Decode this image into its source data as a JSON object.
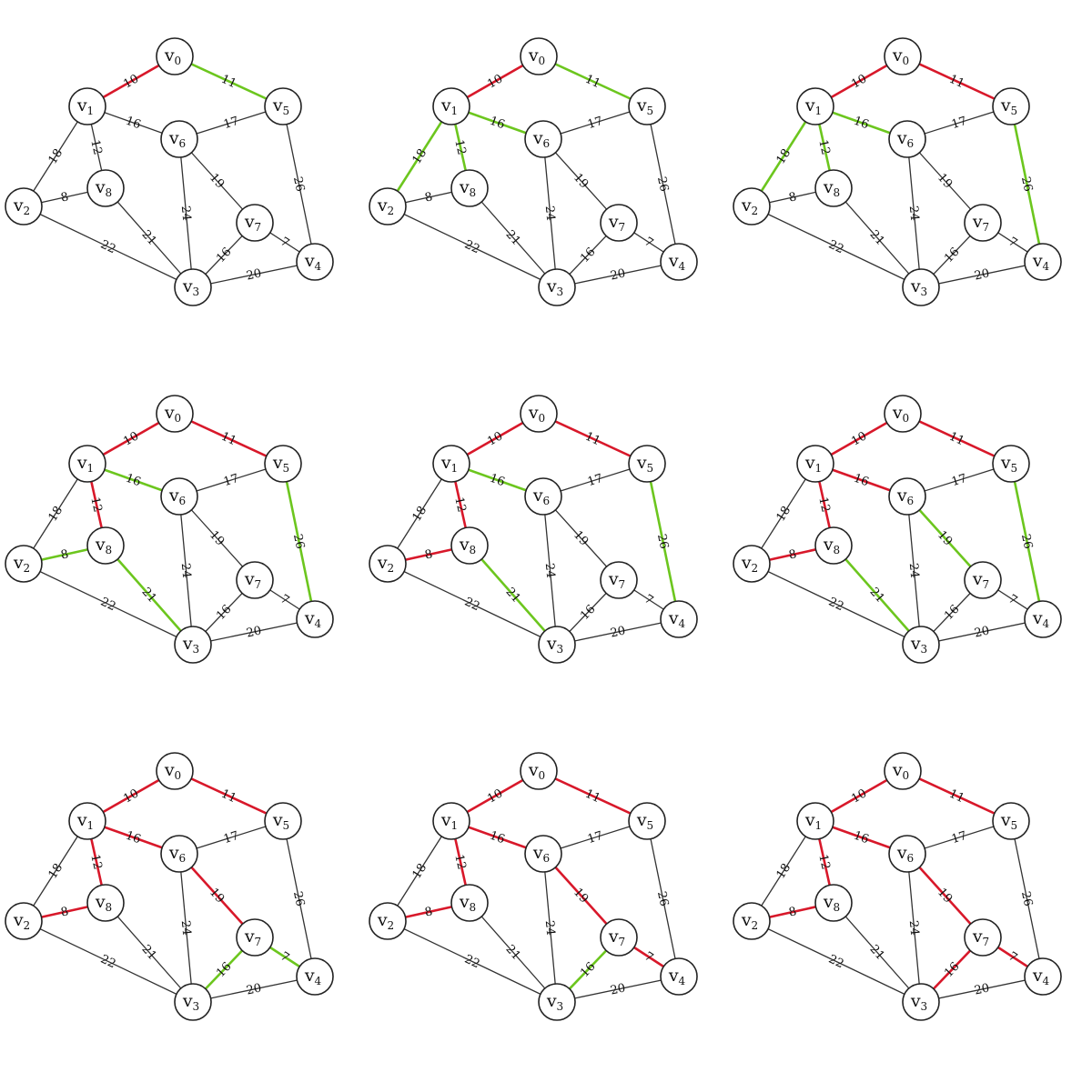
{
  "nodes": [
    {
      "id": "v0",
      "letter": "v",
      "index": "0"
    },
    {
      "id": "v1",
      "letter": "v",
      "index": "1"
    },
    {
      "id": "v2",
      "letter": "v",
      "index": "2"
    },
    {
      "id": "v3",
      "letter": "v",
      "index": "3"
    },
    {
      "id": "v4",
      "letter": "v",
      "index": "4"
    },
    {
      "id": "v5",
      "letter": "v",
      "index": "5"
    },
    {
      "id": "v6",
      "letter": "v",
      "index": "6"
    },
    {
      "id": "v7",
      "letter": "v",
      "index": "7"
    },
    {
      "id": "v8",
      "letter": "v",
      "index": "8"
    }
  ],
  "edges": [
    {
      "from": "v0",
      "to": "v1",
      "weight": "10"
    },
    {
      "from": "v0",
      "to": "v5",
      "weight": "11"
    },
    {
      "from": "v1",
      "to": "v6",
      "weight": "16"
    },
    {
      "from": "v1",
      "to": "v2",
      "weight": "18"
    },
    {
      "from": "v1",
      "to": "v8",
      "weight": "12"
    },
    {
      "from": "v6",
      "to": "v5",
      "weight": "17"
    },
    {
      "from": "v5",
      "to": "v4",
      "weight": "26"
    },
    {
      "from": "v2",
      "to": "v8",
      "weight": "8"
    },
    {
      "from": "v2",
      "to": "v3",
      "weight": "22"
    },
    {
      "from": "v8",
      "to": "v3",
      "weight": "21"
    },
    {
      "from": "v6",
      "to": "v3",
      "weight": "24"
    },
    {
      "from": "v6",
      "to": "v7",
      "weight": "19"
    },
    {
      "from": "v7",
      "to": "v3",
      "weight": "16"
    },
    {
      "from": "v7",
      "to": "v4",
      "weight": "7"
    },
    {
      "from": "v3",
      "to": "v4",
      "weight": "20"
    }
  ],
  "colors": {
    "default": "#333333",
    "tree": "#d8182a",
    "candidate": "#6cc61e"
  },
  "panels": [
    {
      "tree": [
        "v0-v1"
      ],
      "candidate": [
        "v0-v5"
      ]
    },
    {
      "tree": [
        "v0-v1"
      ],
      "candidate": [
        "v0-v5",
        "v1-v6",
        "v1-v2",
        "v1-v8"
      ]
    },
    {
      "tree": [
        "v0-v1",
        "v0-v5"
      ],
      "candidate": [
        "v1-v6",
        "v1-v2",
        "v1-v8",
        "v5-v4"
      ]
    },
    {
      "tree": [
        "v0-v1",
        "v0-v5",
        "v1-v8"
      ],
      "candidate": [
        "v1-v6",
        "v5-v4",
        "v2-v8",
        "v8-v3"
      ]
    },
    {
      "tree": [
        "v0-v1",
        "v0-v5",
        "v1-v8",
        "v2-v8"
      ],
      "candidate": [
        "v1-v6",
        "v5-v4",
        "v8-v3"
      ]
    },
    {
      "tree": [
        "v0-v1",
        "v0-v5",
        "v1-v8",
        "v2-v8",
        "v1-v6"
      ],
      "candidate": [
        "v5-v4",
        "v8-v3",
        "v6-v7"
      ]
    },
    {
      "tree": [
        "v0-v1",
        "v0-v5",
        "v1-v8",
        "v2-v8",
        "v1-v6",
        "v6-v7"
      ],
      "candidate": [
        "v7-v3",
        "v7-v4"
      ]
    },
    {
      "tree": [
        "v0-v1",
        "v0-v5",
        "v1-v8",
        "v2-v8",
        "v1-v6",
        "v6-v7",
        "v7-v4"
      ],
      "candidate": [
        "v7-v3"
      ]
    },
    {
      "tree": [
        "v0-v1",
        "v0-v5",
        "v1-v8",
        "v2-v8",
        "v1-v6",
        "v6-v7",
        "v7-v4",
        "v7-v3"
      ],
      "candidate": []
    }
  ]
}
